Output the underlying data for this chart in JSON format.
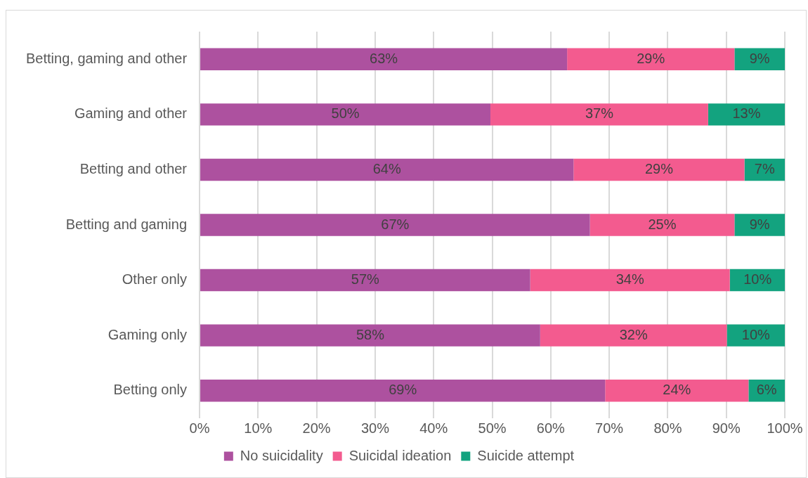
{
  "chart_data": {
    "type": "bar",
    "orientation": "horizontal",
    "stacked": true,
    "categories": [
      "Betting, gaming and other",
      "Gaming and other",
      "Betting and other",
      "Betting and gaming",
      "Other only",
      "Gaming only",
      "Betting only"
    ],
    "series": [
      {
        "name": "No suicidality",
        "color": "#ad519f",
        "values": [
          62.8,
          49.7,
          63.9,
          66.7,
          56.5,
          58.2,
          69.3
        ],
        "value_labels": [
          "63%",
          "50%",
          "64%",
          "67%",
          "57%",
          "58%",
          "69%"
        ]
      },
      {
        "name": "Suicidal ideation",
        "color": "#f35b8f",
        "values": [
          28.6,
          37.2,
          29.2,
          24.7,
          34.1,
          31.9,
          24.5
        ],
        "value_labels": [
          "29%",
          "37%",
          "29%",
          "25%",
          "34%",
          "32%",
          "24%"
        ]
      },
      {
        "name": "Suicide attempt",
        "color": "#13a37f",
        "values": [
          8.6,
          13.1,
          6.9,
          8.6,
          9.5,
          9.9,
          6.2
        ],
        "value_labels": [
          "9%",
          "13%",
          "7%",
          "9%",
          "10%",
          "10%",
          "6%"
        ]
      }
    ],
    "xlim": [
      0,
      100
    ],
    "xticks": [
      {
        "value": 0,
        "label": "0%"
      },
      {
        "value": 10,
        "label": "10%"
      },
      {
        "value": 20,
        "label": "20%"
      },
      {
        "value": 30,
        "label": "30%"
      },
      {
        "value": 40,
        "label": "40%"
      },
      {
        "value": 50,
        "label": "50%"
      },
      {
        "value": 60,
        "label": "60%"
      },
      {
        "value": 70,
        "label": "70%"
      },
      {
        "value": 80,
        "label": "80%"
      },
      {
        "value": 90,
        "label": "90%"
      },
      {
        "value": 100,
        "label": "100%"
      }
    ],
    "grid": "x",
    "legend": "bottom"
  }
}
